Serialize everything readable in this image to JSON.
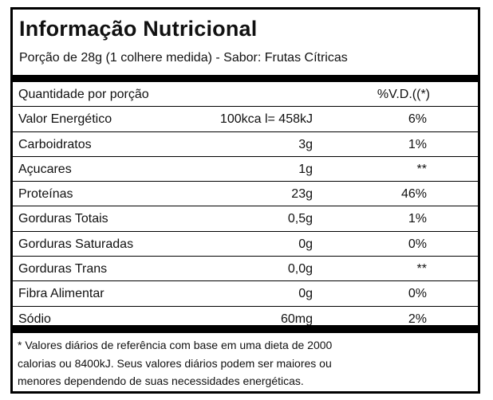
{
  "title": "Informação Nutricional",
  "portion": "Porção de 28g (1 colhere medida) - Sabor: Frutas Cítricas",
  "header": {
    "label": "Quantidade por porção",
    "vd": "%V.D.((*)"
  },
  "rows": [
    {
      "name": "Valor Energético",
      "qty": "100kca l= 458kJ",
      "vd": "6%"
    },
    {
      "name": "Carboidratos",
      "qty": "3g",
      "vd": "1%"
    },
    {
      "name": "Açucares",
      "qty": "1g",
      "vd": "**"
    },
    {
      "name": "Proteínas",
      "qty": "23g",
      "vd": "46%"
    },
    {
      "name": "Gorduras Totais",
      "qty": "0,5g",
      "vd": "1%"
    },
    {
      "name": "Gorduras Saturadas",
      "qty": "0g",
      "vd": "0%"
    },
    {
      "name": "Gorduras Trans",
      "qty": "0,0g",
      "vd": "**"
    },
    {
      "name": "Fibra Alimentar",
      "qty": "0g",
      "vd": "0%"
    },
    {
      "name": "Sódio",
      "qty": "60mg",
      "vd": "2%"
    }
  ],
  "footnote": {
    "line1": "* Valores diários de referência com base em uma dieta de 2000",
    "line2": "calorias ou 8400kJ. Seus valores diários podem ser maiores ou",
    "line3": "menores dependendo de suas necessidades energéticas."
  }
}
